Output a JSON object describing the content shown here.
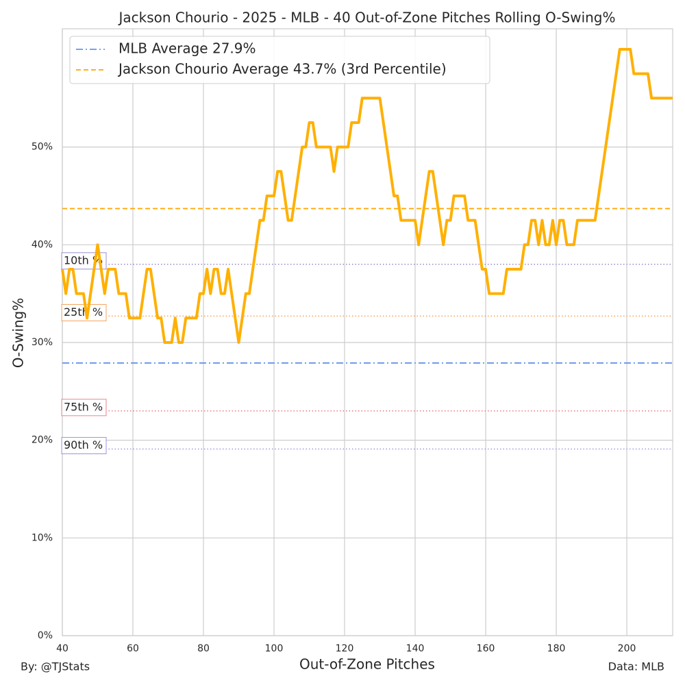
{
  "chart_data": {
    "type": "line",
    "title": "Jackson Chourio - 2025 - MLB - 40 Out-of-Zone Pitches Rolling O-Swing%",
    "x_label": "Out-of-Zone Pitches",
    "y_label": "O-Swing%",
    "credit": "By: @TJStats",
    "source": "Data: MLB",
    "xlim": [
      40,
      213
    ],
    "xticks": [
      40,
      60,
      80,
      100,
      120,
      140,
      160,
      180,
      200
    ],
    "ylim": [
      0,
      62.1
    ],
    "yticks": [
      {
        "value": 0,
        "label": "0%"
      },
      {
        "value": 10,
        "label": "10%"
      },
      {
        "value": 20,
        "label": "20%"
      },
      {
        "value": 30,
        "label": "30%"
      },
      {
        "value": 40,
        "label": "40%"
      },
      {
        "value": 50,
        "label": "50%"
      }
    ],
    "grid": true,
    "legend": "upper left",
    "reference_lines": [
      {
        "name": "MLB Average 27.9%",
        "value": 27.9,
        "color": "#6495ed",
        "dash": "dashdot"
      },
      {
        "name": "Jackson Chourio Average 43.7% (3rd Percentile)",
        "value": 43.7,
        "color": "#ffa500",
        "dash": "dashed"
      }
    ],
    "percentile_lines": [
      {
        "label": "10th %",
        "value": 38.0,
        "color": "#9b8fc9"
      },
      {
        "label": "25th %",
        "value": 32.7,
        "color": "#f4a460"
      },
      {
        "label": "75th %",
        "value": 23.0,
        "color": "#e8828c"
      },
      {
        "label": "90th %",
        "value": 19.1,
        "color": "#9a96e6"
      }
    ],
    "series": [
      {
        "name": "Jackson Chourio",
        "color": "#ffb000",
        "x": [
          40,
          41,
          42,
          43,
          44,
          45,
          46,
          47,
          48,
          49,
          50,
          51,
          52,
          53,
          54,
          55,
          56,
          57,
          58,
          59,
          60,
          61,
          62,
          63,
          64,
          65,
          66,
          67,
          68,
          69,
          70,
          71,
          72,
          73,
          74,
          75,
          76,
          77,
          78,
          79,
          80,
          81,
          82,
          83,
          84,
          85,
          86,
          87,
          88,
          89,
          90,
          91,
          92,
          93,
          94,
          95,
          96,
          97,
          98,
          99,
          100,
          101,
          102,
          103,
          104,
          105,
          106,
          107,
          108,
          109,
          110,
          111,
          112,
          113,
          114,
          115,
          116,
          117,
          118,
          119,
          120,
          121,
          122,
          123,
          124,
          125,
          126,
          127,
          128,
          129,
          130,
          131,
          132,
          133,
          134,
          135,
          136,
          137,
          138,
          139,
          140,
          141,
          142,
          143,
          144,
          145,
          146,
          147,
          148,
          149,
          150,
          151,
          152,
          153,
          154,
          155,
          156,
          157,
          158,
          159,
          160,
          161,
          162,
          163,
          164,
          165,
          166,
          167,
          168,
          169,
          170,
          171,
          172,
          173,
          174,
          175,
          176,
          177,
          178,
          179,
          180,
          181,
          182,
          183,
          184,
          185,
          186,
          187,
          188,
          189,
          190,
          191,
          192,
          193,
          194,
          195,
          196,
          197,
          198,
          199,
          200,
          201,
          202,
          203,
          204,
          205,
          206,
          207,
          208,
          209,
          210,
          211,
          212,
          213
        ],
        "values": [
          37.5,
          35,
          37.5,
          37.5,
          35,
          35,
          35,
          32.5,
          35,
          37.5,
          40,
          37.5,
          35,
          37.5,
          37.5,
          37.5,
          35,
          35,
          35,
          32.5,
          32.5,
          32.5,
          32.5,
          35,
          37.5,
          37.5,
          35,
          32.5,
          32.5,
          30,
          30,
          30,
          32.5,
          30,
          30,
          32.5,
          32.5,
          32.5,
          32.5,
          35,
          35,
          37.5,
          35,
          37.5,
          37.5,
          35,
          35,
          37.5,
          35,
          32.5,
          30,
          32.5,
          35,
          35,
          37.5,
          40,
          42.5,
          42.5,
          45,
          45,
          45,
          47.5,
          47.5,
          45,
          42.5,
          42.5,
          45,
          47.5,
          50,
          50,
          52.5,
          52.5,
          50,
          50,
          50,
          50,
          50,
          47.5,
          50,
          50,
          50,
          50,
          52.5,
          52.5,
          52.5,
          55,
          55,
          55,
          55,
          55,
          55,
          52.5,
          50,
          47.5,
          45,
          45,
          42.5,
          42.5,
          42.5,
          42.5,
          42.5,
          40,
          42.5,
          45,
          47.5,
          47.5,
          45,
          42.5,
          40,
          42.5,
          42.5,
          45,
          45,
          45,
          45,
          42.5,
          42.5,
          42.5,
          40,
          37.5,
          37.5,
          35,
          35,
          35,
          35,
          35,
          37.5,
          37.5,
          37.5,
          37.5,
          37.5,
          40,
          40,
          42.5,
          42.5,
          40,
          42.5,
          40,
          40,
          42.5,
          40,
          42.5,
          42.5,
          40,
          40,
          40,
          42.5,
          42.5,
          42.5,
          42.5,
          42.5,
          42.5,
          45,
          47.5,
          50,
          52.5,
          55,
          57.5,
          60,
          60,
          60,
          60,
          57.5,
          57.5,
          57.5,
          57.5,
          57.5,
          55,
          55,
          55,
          55,
          55,
          55,
          55
        ]
      }
    ]
  }
}
